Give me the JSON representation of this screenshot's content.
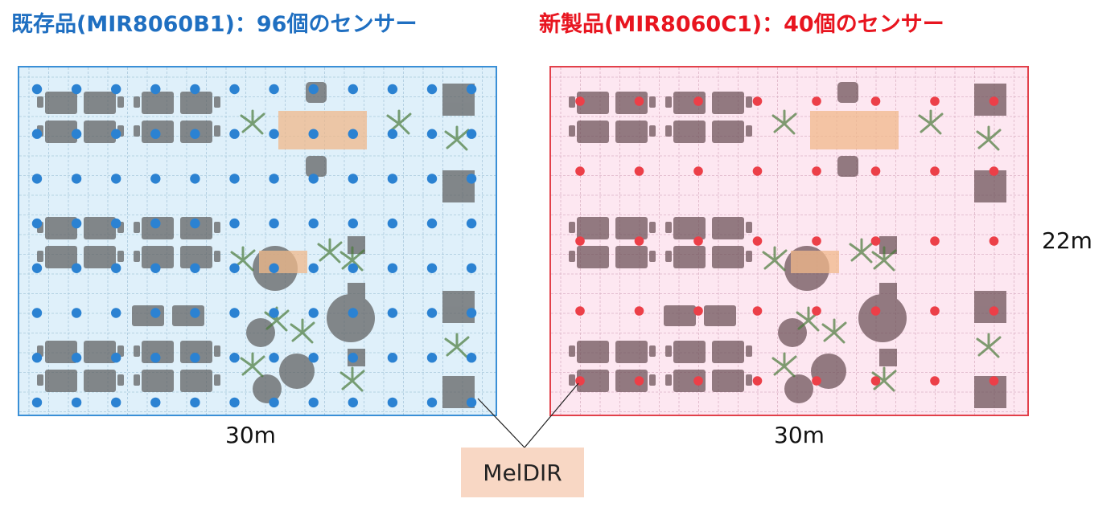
{
  "titles": {
    "left": "既存品(MIR8060B1)：96個のセンサー",
    "right": "新製品(MIR8060C1)：40個のセンサー"
  },
  "dimensions": {
    "width_left": "30m",
    "width_right": "30m",
    "height": "22m"
  },
  "callout": {
    "label": "MelDIR"
  },
  "colors": {
    "left_accent": "#1f6fc1",
    "left_dot": "#2b82d2",
    "left_fill": "#dff0fa",
    "right_accent": "#e8151f",
    "right_dot": "#ec3f48",
    "right_fill": "#fde7f1",
    "callout_fill": "#f8d7c4"
  },
  "sensor_grids": {
    "left": {
      "columns": 12,
      "rows": 8,
      "count": 96
    },
    "right": {
      "columns": 8,
      "rows": 5,
      "count": 40
    }
  }
}
